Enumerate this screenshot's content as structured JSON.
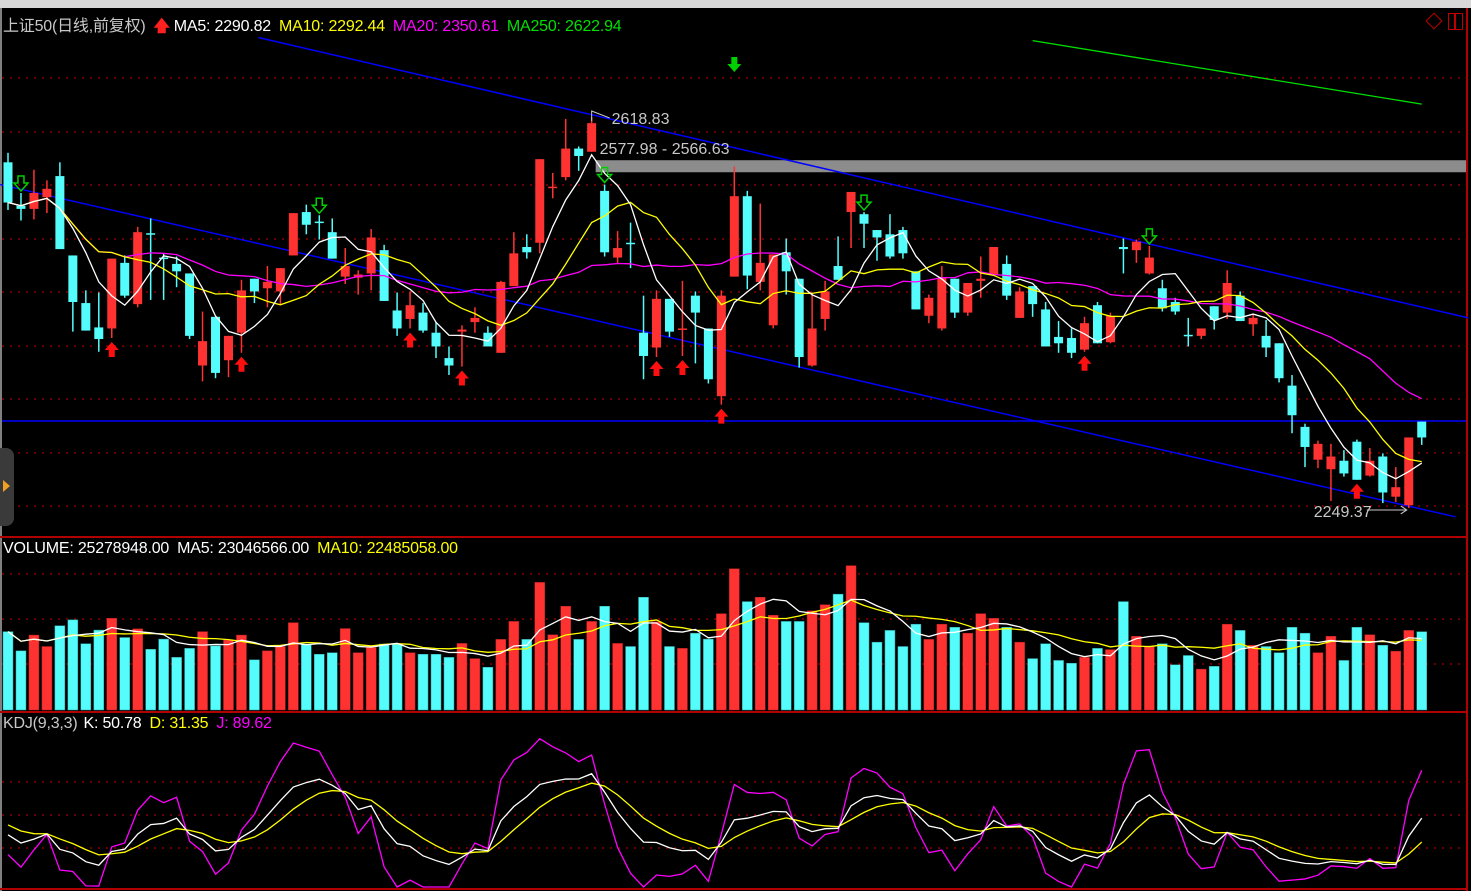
{
  "main": {
    "title": "上证50(日线,前复权)",
    "ma5_label": "MA5: 2290.82",
    "ma10_label": "MA10: 2292.44",
    "ma20_label": "MA20: 2350.61",
    "ma250_label": "MA250: 2622.94"
  },
  "volume_panel": {
    "volume_label": "VOLUME: 25278948.00",
    "ma5_label": "MA5: 23046566.00",
    "ma10_label": "MA10: 22485058.00"
  },
  "kdj_panel": {
    "title_label": "KDJ(9,3,3)",
    "k_label": "K: 50.78",
    "d_label": "D: 31.35",
    "j_label": "J: 89.62"
  },
  "colors": {
    "up": "#ff3232",
    "down": "#54fcfc",
    "ma5": "#ffffff",
    "ma10": "#ffff00",
    "ma20": "#ff00ff",
    "ma250": "#00e000",
    "trendline": "#0000ff",
    "grid": "#8b0000",
    "annotation": "#c8c8c8"
  },
  "icons": [
    "up-arrow-icon",
    "diamond-icon",
    "panes-icon",
    "left-collapse-tab-icon"
  ],
  "chart_data": [
    {
      "type": "candlestick",
      "title": "上证50(日线,前复权)",
      "fields": [
        "open",
        "high",
        "low",
        "close"
      ],
      "candles": [
        [
          2576,
          2585,
          2531,
          2538
        ],
        [
          2535,
          2547,
          2521,
          2532
        ],
        [
          2532,
          2569,
          2522,
          2547
        ],
        [
          2543,
          2559,
          2528,
          2551
        ],
        [
          2563,
          2576,
          2494,
          2494
        ],
        [
          2488,
          2488,
          2416,
          2444
        ],
        [
          2443,
          2455,
          2417,
          2417
        ],
        [
          2420,
          2453,
          2397,
          2409
        ],
        [
          2419,
          2485,
          2410,
          2485
        ],
        [
          2481,
          2488,
          2448,
          2450
        ],
        [
          2442,
          2515,
          2439,
          2510
        ],
        [
          2509,
          2523,
          2446,
          2508
        ],
        [
          2486,
          2490,
          2446,
          2485
        ],
        [
          2480,
          2487,
          2458,
          2473
        ],
        [
          2471,
          2471,
          2409,
          2412
        ],
        [
          2384,
          2435,
          2369,
          2407
        ],
        [
          2430,
          2430,
          2372,
          2377
        ],
        [
          2389,
          2412,
          2373,
          2412
        ],
        [
          2415,
          2465,
          2396,
          2455
        ],
        [
          2466,
          2466,
          2443,
          2454
        ],
        [
          2457,
          2478,
          2439,
          2463
        ],
        [
          2454,
          2476,
          2441,
          2476
        ],
        [
          2488,
          2528,
          2488,
          2528
        ],
        [
          2529,
          2536,
          2508,
          2517
        ],
        [
          2520,
          2526,
          2503,
          2519
        ],
        [
          2510,
          2523,
          2485,
          2485
        ],
        [
          2468,
          2495,
          2461,
          2478
        ],
        [
          2467,
          2474,
          2451,
          2470
        ],
        [
          2471,
          2513,
          2455,
          2505
        ],
        [
          2493,
          2498,
          2445,
          2445
        ],
        [
          2436,
          2453,
          2412,
          2419
        ],
        [
          2428,
          2454,
          2419,
          2441
        ],
        [
          2434,
          2443,
          2415,
          2417
        ],
        [
          2415,
          2425,
          2391,
          2402
        ],
        [
          2391,
          2402,
          2375,
          2384
        ],
        [
          2416,
          2422,
          2383,
          2418
        ],
        [
          2425,
          2439,
          2415,
          2429
        ],
        [
          2415,
          2421,
          2402,
          2402
        ],
        [
          2396,
          2464,
          2396,
          2463
        ],
        [
          2459,
          2510,
          2459,
          2490
        ],
        [
          2496,
          2508,
          2485,
          2491
        ],
        [
          2500,
          2579,
          2490,
          2579
        ],
        [
          2552,
          2566,
          2542,
          2553
        ],
        [
          2562,
          2617,
          2559,
          2589
        ],
        [
          2589,
          2591,
          2568,
          2582
        ],
        [
          2586,
          2618.83,
          2586,
          2613
        ],
        [
          2549,
          2555,
          2487,
          2491
        ],
        [
          2486,
          2511,
          2481,
          2495
        ],
        [
          2500,
          2519,
          2476,
          2499
        ],
        [
          2415,
          2450,
          2371,
          2393
        ],
        [
          2401,
          2455,
          2392,
          2447
        ],
        [
          2447,
          2447,
          2411,
          2416
        ],
        [
          2418,
          2464,
          2393,
          2419
        ],
        [
          2450,
          2454,
          2386,
          2434
        ],
        [
          2419,
          2419,
          2367,
          2371
        ],
        [
          2355,
          2455,
          2347,
          2450
        ],
        [
          2468,
          2572,
          2468,
          2544
        ],
        [
          2544,
          2549,
          2456,
          2469
        ],
        [
          2463,
          2537,
          2455,
          2481
        ],
        [
          2422,
          2489,
          2419,
          2489
        ],
        [
          2491,
          2504,
          2451,
          2473
        ],
        [
          2466,
          2466,
          2382,
          2392
        ],
        [
          2384,
          2453,
          2383,
          2419
        ],
        [
          2428,
          2464,
          2417,
          2454
        ],
        [
          2478,
          2506,
          2465,
          2465
        ],
        [
          2529,
          2548,
          2495,
          2548
        ],
        [
          2527,
          2529,
          2495,
          2518
        ],
        [
          2512,
          2512,
          2483,
          2505
        ],
        [
          2508,
          2527,
          2485,
          2487
        ],
        [
          2512,
          2515,
          2485,
          2490
        ],
        [
          2473,
          2473,
          2437,
          2437
        ],
        [
          2431,
          2451,
          2424,
          2448
        ],
        [
          2419,
          2478,
          2417,
          2467
        ],
        [
          2466,
          2466,
          2429,
          2434
        ],
        [
          2434,
          2462,
          2431,
          2462
        ],
        [
          2464,
          2487,
          2448,
          2466
        ],
        [
          2470,
          2496,
          2470,
          2496
        ],
        [
          2480,
          2488,
          2446,
          2450
        ],
        [
          2429,
          2458,
          2429,
          2454
        ],
        [
          2459,
          2459,
          2430,
          2442
        ],
        [
          2437,
          2444,
          2402,
          2402
        ],
        [
          2411,
          2426,
          2396,
          2405
        ],
        [
          2410,
          2419,
          2391,
          2396
        ],
        [
          2399,
          2430,
          2397,
          2424
        ],
        [
          2441,
          2444,
          2405,
          2405
        ],
        [
          2406,
          2434,
          2405,
          2431
        ],
        [
          2496,
          2504,
          2471,
          2494
        ],
        [
          2493,
          2503,
          2481,
          2501
        ],
        [
          2471,
          2497,
          2470,
          2486
        ],
        [
          2457,
          2465,
          2435,
          2438
        ],
        [
          2444,
          2448,
          2432,
          2435
        ],
        [
          2413,
          2429,
          2402,
          2412
        ],
        [
          2412,
          2419,
          2409,
          2419
        ],
        [
          2440,
          2440,
          2418,
          2427
        ],
        [
          2434,
          2474,
          2428,
          2462
        ],
        [
          2450,
          2454,
          2426,
          2426
        ],
        [
          2423,
          2432,
          2412,
          2429
        ],
        [
          2412,
          2427,
          2392,
          2401
        ],
        [
          2405,
          2405,
          2368,
          2372
        ],
        [
          2365,
          2375,
          2320,
          2337
        ],
        [
          2326,
          2329,
          2288,
          2307
        ],
        [
          2295,
          2313,
          2287,
          2310
        ],
        [
          2286,
          2310,
          2256,
          2298
        ],
        [
          2294,
          2304,
          2279,
          2282
        ],
        [
          2312,
          2314,
          2276,
          2276
        ],
        [
          2280,
          2306,
          2279,
          2294
        ],
        [
          2298,
          2301,
          2254,
          2264
        ],
        [
          2260,
          2288,
          2255,
          2269
        ],
        [
          2252,
          2316,
          2249.37,
          2316
        ],
        [
          2331,
          2331,
          2309,
          2316
        ]
      ],
      "moving_averages": [
        "MA5",
        "MA10",
        "MA20"
      ],
      "ma250_points": [
        [
          79,
          2691
        ],
        [
          92,
          2665
        ],
        [
          109,
          2631
        ]
      ],
      "trendlines": [
        {
          "from": [
            19.3,
            2694
          ],
          "to": [
            112.6,
            2429
          ]
        },
        {
          "from": [
            -0.6,
            2555
          ],
          "to": [
            111.6,
            2241
          ]
        },
        {
          "horizontal": 2331.6
        }
      ],
      "gap_band": {
        "from_index": 45,
        "low": 2566.63,
        "high": 2577.98
      },
      "buy_arrows": [
        8,
        18,
        31,
        35,
        50,
        52,
        55,
        83,
        104
      ],
      "sell_arrows": [
        1,
        24,
        46,
        66,
        88
      ],
      "sell_signal_top": 56,
      "annotations": {
        "high_label": "2618.83",
        "high_index": 45,
        "gap_label": "2577.98 - 2566.63",
        "low_label": "2249.37",
        "low_index": 108
      },
      "ylim": [
        2230,
        2730
      ],
      "grid": true
    },
    {
      "type": "bar",
      "title": "VOLUME",
      "values": [
        25300000,
        19100000,
        24200000,
        20500000,
        27200000,
        29100000,
        21400000,
        25800000,
        29600000,
        23400000,
        26200000,
        19600000,
        22900000,
        17000000,
        19900000,
        25300000,
        20700000,
        22600000,
        24200000,
        16200000,
        19100000,
        20500000,
        28200000,
        21300000,
        18000000,
        18500000,
        26300000,
        18500000,
        20200000,
        21300000,
        21300000,
        18500000,
        18000000,
        18000000,
        17000000,
        21500000,
        16600000,
        13800000,
        22800000,
        28600000,
        22800000,
        41200000,
        24300000,
        33500000,
        22800000,
        28600000,
        33500000,
        21500000,
        20500000,
        36400000,
        28500000,
        20500000,
        19900000,
        24800000,
        22900000,
        31100000,
        45600000,
        35000000,
        36400000,
        30600000,
        28600000,
        28600000,
        32000000,
        34000000,
        37400000,
        46600000,
        28200000,
        21900000,
        25700000,
        20500000,
        27700000,
        22800000,
        27700000,
        26700000,
        24800000,
        31100000,
        29600000,
        26700000,
        21900000,
        16600000,
        21400000,
        16000000,
        15100000,
        17000000,
        19900000,
        19500000,
        35000000,
        23800000,
        20500000,
        21400000,
        14600000,
        17600000,
        13200000,
        14100000,
        27700000,
        25700000,
        20900000,
        20500000,
        18500000,
        26700000,
        24800000,
        18500000,
        23800000,
        16000000,
        26700000,
        24300000,
        20900000,
        19000000,
        25700000,
        25278948
      ],
      "moving_averages": [
        "MA5",
        "MA10"
      ],
      "grid": true
    },
    {
      "type": "line",
      "title": "KDJ(9,3,3)",
      "series": [
        {
          "name": "K"
        },
        {
          "name": "D"
        },
        {
          "name": "J"
        }
      ],
      "grid": true
    }
  ]
}
